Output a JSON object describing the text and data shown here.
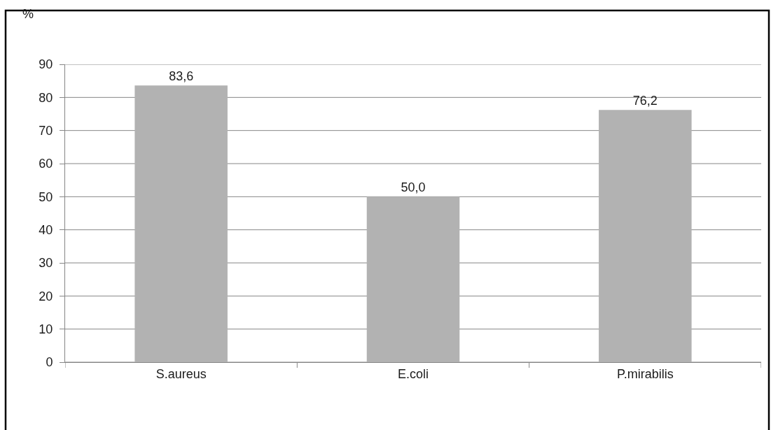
{
  "chart_data": {
    "type": "bar",
    "ylabel": "%",
    "categories": [
      "S.aureus",
      "E.coli",
      "P.mirabilis"
    ],
    "values": [
      83.6,
      50.0,
      76.2
    ],
    "value_labels": [
      "83,6",
      "50,0",
      "76,2"
    ],
    "color": "#b2b2b2",
    "ylim": [
      0,
      90
    ],
    "yticks": [
      0,
      10,
      20,
      30,
      40,
      50,
      60,
      70,
      80,
      90
    ],
    "grid": "y"
  }
}
